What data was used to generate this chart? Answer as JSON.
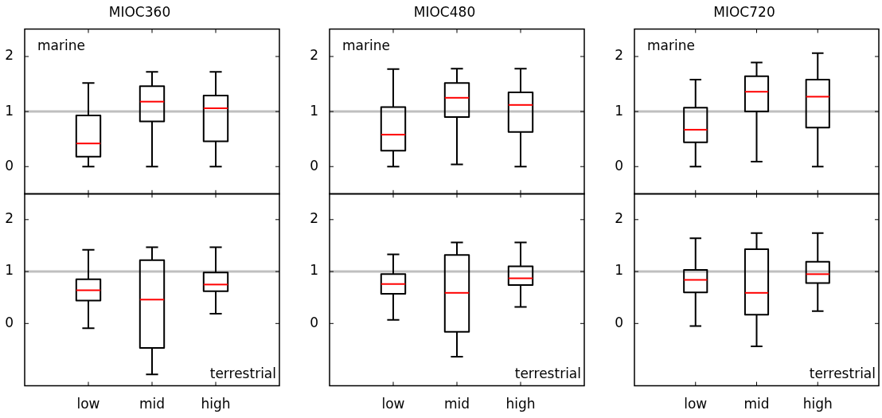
{
  "chart_data": [
    {
      "type": "box",
      "title": "MIOC360",
      "annotations": [
        "marine"
      ],
      "categories": [
        null,
        null,
        null
      ],
      "ylim": [
        -0.5,
        2.5
      ],
      "yticks": [
        0,
        1,
        2
      ],
      "tick_labels": "y",
      "ref_lines": [
        {
          "axis": "y",
          "value": 1,
          "color": "#bfbfbf"
        }
      ],
      "series": [
        {
          "color": "#000000",
          "boxes": [
            {
              "low": 0,
              "q1": 0.18,
              "median": 0.42,
              "q3": 0.93,
              "high": 1.52
            },
            {
              "low": 0,
              "q1": 0.82,
              "median": 1.18,
              "q3": 1.46,
              "high": 1.72
            },
            {
              "low": 0,
              "q1": 0.46,
              "median": 1.06,
              "q3": 1.29,
              "high": 1.72
            }
          ]
        }
      ]
    },
    {
      "type": "box",
      "title": "MIOC480",
      "annotations": [
        "marine"
      ],
      "categories": [
        null,
        null,
        null
      ],
      "ylim": [
        -0.5,
        2.5
      ],
      "yticks": [
        0,
        1,
        2
      ],
      "tick_labels": "y",
      "ref_lines": [
        {
          "axis": "y",
          "value": 1,
          "color": "#bfbfbf"
        }
      ],
      "series": [
        {
          "color": "#000000",
          "boxes": [
            {
              "low": 0,
              "q1": 0.29,
              "median": 0.58,
              "q3": 1.08,
              "high": 1.77
            },
            {
              "low": 0.04,
              "q1": 0.9,
              "median": 1.25,
              "q3": 1.52,
              "high": 1.78
            },
            {
              "low": 0,
              "q1": 0.63,
              "median": 1.12,
              "q3": 1.35,
              "high": 1.78
            }
          ]
        }
      ]
    },
    {
      "type": "box",
      "title": "MIOC720",
      "annotations": [
        "marine"
      ],
      "categories": [
        null,
        null,
        null
      ],
      "ylim": [
        -0.5,
        2.5
      ],
      "yticks": [
        0,
        1,
        2
      ],
      "tick_labels": "y",
      "ref_lines": [
        {
          "axis": "y",
          "value": 1,
          "color": "#bfbfbf"
        }
      ],
      "series": [
        {
          "color": "#000000",
          "boxes": [
            {
              "low": 0,
              "q1": 0.44,
              "median": 0.67,
              "q3": 1.07,
              "high": 1.58
            },
            {
              "low": 0.09,
              "q1": 1.0,
              "median": 1.36,
              "q3": 1.64,
              "high": 1.89
            },
            {
              "low": 0,
              "q1": 0.71,
              "median": 1.27,
              "q3": 1.58,
              "high": 2.06
            }
          ]
        }
      ]
    },
    {
      "type": "box",
      "annotations": [
        "terrestrial"
      ],
      "categories": [
        "low",
        "mid",
        "high"
      ],
      "ylim": [
        -1.2,
        2.5
      ],
      "yticks": [
        0,
        1,
        2
      ],
      "ref_lines": [
        {
          "axis": "y",
          "value": 1,
          "color": "#bfbfbf"
        }
      ],
      "series": [
        {
          "color": "#000000",
          "boxes": [
            {
              "low": -0.09,
              "q1": 0.44,
              "median": 0.64,
              "q3": 0.85,
              "high": 1.42
            },
            {
              "low": -0.98,
              "q1": -0.47,
              "median": 0.46,
              "q3": 1.22,
              "high": 1.47
            },
            {
              "low": 0.19,
              "q1": 0.62,
              "median": 0.75,
              "q3": 0.98,
              "high": 1.47
            }
          ]
        }
      ]
    },
    {
      "type": "box",
      "annotations": [
        "terrestrial"
      ],
      "categories": [
        "low",
        "mid",
        "high"
      ],
      "ylim": [
        -1.2,
        2.5
      ],
      "yticks": [
        0,
        1,
        2
      ],
      "ref_lines": [
        {
          "axis": "y",
          "value": 1,
          "color": "#bfbfbf"
        }
      ],
      "series": [
        {
          "color": "#000000",
          "boxes": [
            {
              "low": 0.07,
              "q1": 0.57,
              "median": 0.76,
              "q3": 0.95,
              "high": 1.33
            },
            {
              "low": -0.64,
              "q1": -0.16,
              "median": 0.59,
              "q3": 1.32,
              "high": 1.56
            },
            {
              "low": 0.32,
              "q1": 0.74,
              "median": 0.87,
              "q3": 1.1,
              "high": 1.56
            }
          ]
        }
      ]
    },
    {
      "type": "box",
      "annotations": [
        "terrestrial"
      ],
      "categories": [
        "low",
        "mid",
        "high"
      ],
      "ylim": [
        -1.2,
        2.5
      ],
      "yticks": [
        0,
        1,
        2
      ],
      "ref_lines": [
        {
          "axis": "y",
          "value": 1,
          "color": "#bfbfbf"
        }
      ],
      "series": [
        {
          "color": "#000000",
          "boxes": [
            {
              "low": -0.05,
              "q1": 0.6,
              "median": 0.84,
              "q3": 1.03,
              "high": 1.64
            },
            {
              "low": -0.44,
              "q1": 0.17,
              "median": 0.59,
              "q3": 1.43,
              "high": 1.74
            },
            {
              "low": 0.24,
              "q1": 0.78,
              "median": 0.95,
              "q3": 1.19,
              "high": 1.74
            }
          ]
        }
      ]
    }
  ]
}
